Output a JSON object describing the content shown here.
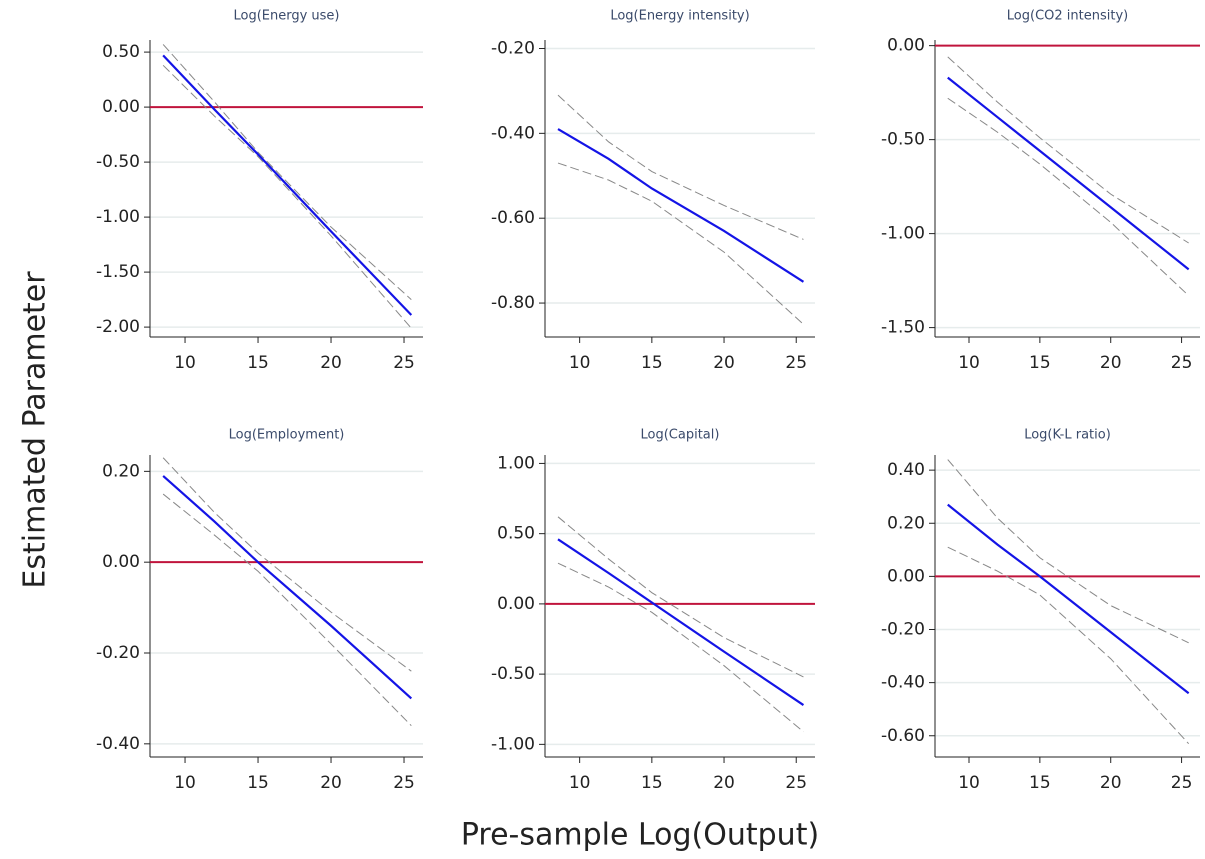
{
  "ylabel": "Estimated Parameter",
  "xlabel": "Pre-sample Log(Output)",
  "chart_data": [
    {
      "type": "line",
      "title": "Log(Energy use)",
      "x": [
        8.5,
        12,
        15,
        20,
        25.5
      ],
      "xlim": [
        7.6,
        26.3
      ],
      "xticks": [
        10,
        15,
        20,
        25
      ],
      "ylim": [
        -2.09,
        0.61
      ],
      "yticks": [
        {
          "value": 0.5,
          "label": "0.50"
        },
        {
          "value": 0,
          "label": "0.00"
        },
        {
          "value": -0.5,
          "label": "-0.50"
        },
        {
          "value": -1,
          "label": "-1.00"
        },
        {
          "value": -1.5,
          "label": "-1.50"
        },
        {
          "value": -2,
          "label": "-2.00"
        }
      ],
      "grid": true,
      "hline": 0,
      "hline_color": "#c0143c",
      "series": [
        {
          "color": "#1414e6",
          "values": [
            0.47,
            -0.02,
            -0.43,
            -1.13,
            -1.89
          ]
        },
        {
          "color": "#888888",
          "dash": true,
          "values": [
            0.57,
            0.05,
            -0.41,
            -1.09,
            -1.75
          ]
        },
        {
          "color": "#888888",
          "dash": true,
          "values": [
            0.38,
            -0.08,
            -0.45,
            -1.17,
            -2.01
          ]
        }
      ]
    },
    {
      "type": "line",
      "title": "Log(Energy intensity)",
      "x": [
        8.5,
        12,
        15,
        20,
        25.5
      ],
      "xlim": [
        7.6,
        26.3
      ],
      "xticks": [
        10,
        15,
        20,
        25
      ],
      "ylim": [
        -0.88,
        -0.18
      ],
      "yticks": [
        {
          "value": -0.2,
          "label": "-0.20"
        },
        {
          "value": -0.4,
          "label": "-0.40"
        },
        {
          "value": -0.6,
          "label": "-0.60"
        },
        {
          "value": -0.8,
          "label": "-0.80"
        }
      ],
      "grid": true,
      "series": [
        {
          "color": "#1414e6",
          "values": [
            -0.39,
            -0.46,
            -0.53,
            -0.63,
            -0.75
          ]
        },
        {
          "color": "#888888",
          "dash": true,
          "values": [
            -0.31,
            -0.42,
            -0.49,
            -0.57,
            -0.65
          ]
        },
        {
          "color": "#888888",
          "dash": true,
          "values": [
            -0.47,
            -0.51,
            -0.56,
            -0.68,
            -0.85
          ]
        }
      ]
    },
    {
      "type": "line",
      "title": "Log(CO2 intensity)",
      "x": [
        8.5,
        12,
        15,
        20,
        25.5
      ],
      "xlim": [
        7.6,
        26.3
      ],
      "xticks": [
        10,
        15,
        20,
        25
      ],
      "ylim": [
        -1.55,
        0.03
      ],
      "yticks": [
        {
          "value": 0,
          "label": "0.00"
        },
        {
          "value": -0.5,
          "label": "-0.50"
        },
        {
          "value": -1,
          "label": "-1.00"
        },
        {
          "value": -1.5,
          "label": "-1.50"
        }
      ],
      "grid": true,
      "hline": 0,
      "hline_color": "#c0143c",
      "series": [
        {
          "color": "#1414e6",
          "values": [
            -0.17,
            -0.38,
            -0.56,
            -0.86,
            -1.19
          ]
        },
        {
          "color": "#888888",
          "dash": true,
          "values": [
            -0.06,
            -0.3,
            -0.49,
            -0.79,
            -1.05
          ]
        },
        {
          "color": "#888888",
          "dash": true,
          "values": [
            -0.28,
            -0.46,
            -0.63,
            -0.94,
            -1.33
          ]
        }
      ]
    },
    {
      "type": "line",
      "title": "Log(Employment)",
      "x": [
        8.5,
        12,
        15,
        20,
        25.5
      ],
      "xlim": [
        7.6,
        26.3
      ],
      "xticks": [
        10,
        15,
        20,
        25
      ],
      "ylim": [
        -0.429,
        0.236
      ],
      "yticks": [
        {
          "value": 0.2,
          "label": "0.20"
        },
        {
          "value": 0,
          "label": "0.00"
        },
        {
          "value": -0.2,
          "label": "-0.20"
        },
        {
          "value": -0.4,
          "label": "-0.40"
        }
      ],
      "grid": true,
      "hline": 0,
      "hline_color": "#c0143c",
      "series": [
        {
          "color": "#1414e6",
          "values": [
            0.19,
            0.09,
            0.0,
            -0.14,
            -0.3
          ]
        },
        {
          "color": "#888888",
          "dash": true,
          "values": [
            0.23,
            0.11,
            0.02,
            -0.11,
            -0.24
          ]
        },
        {
          "color": "#888888",
          "dash": true,
          "values": [
            0.15,
            0.06,
            -0.02,
            -0.18,
            -0.36
          ]
        }
      ]
    },
    {
      "type": "line",
      "title": "Log(Capital)",
      "x": [
        8.5,
        12,
        15,
        20,
        25.5
      ],
      "xlim": [
        7.6,
        26.3
      ],
      "xticks": [
        10,
        15,
        20,
        25
      ],
      "ylim": [
        -1.09,
        1.06
      ],
      "yticks": [
        {
          "value": 1,
          "label": "1.00"
        },
        {
          "value": 0.5,
          "label": "0.50"
        },
        {
          "value": 0,
          "label": "0.00"
        },
        {
          "value": -0.5,
          "label": "-0.50"
        },
        {
          "value": -1,
          "label": "-1.00"
        }
      ],
      "grid": true,
      "hline": 0,
      "hline_color": "#c0143c",
      "series": [
        {
          "color": "#1414e6",
          "values": [
            0.46,
            0.22,
            0.01,
            -0.34,
            -0.72
          ]
        },
        {
          "color": "#888888",
          "dash": true,
          "values": [
            0.62,
            0.32,
            0.08,
            -0.24,
            -0.52
          ]
        },
        {
          "color": "#888888",
          "dash": true,
          "values": [
            0.29,
            0.12,
            -0.06,
            -0.44,
            -0.91
          ]
        }
      ]
    },
    {
      "type": "line",
      "title": "Log(K-L ratio)",
      "x": [
        8.5,
        12,
        15,
        20,
        25.5
      ],
      "xlim": [
        7.6,
        26.3
      ],
      "xticks": [
        10,
        15,
        20,
        25
      ],
      "ylim": [
        -0.68,
        0.457
      ],
      "yticks": [
        {
          "value": 0.4,
          "label": "0.40"
        },
        {
          "value": 0.2,
          "label": "0.20"
        },
        {
          "value": 0,
          "label": "0.00"
        },
        {
          "value": -0.2,
          "label": "-0.20"
        },
        {
          "value": -0.4,
          "label": "-0.40"
        },
        {
          "value": -0.6,
          "label": "-0.60"
        }
      ],
      "grid": true,
      "hline": 0,
      "hline_color": "#c0143c",
      "series": [
        {
          "color": "#1414e6",
          "values": [
            0.27,
            0.12,
            0.0,
            -0.21,
            -0.44
          ]
        },
        {
          "color": "#888888",
          "dash": true,
          "values": [
            0.44,
            0.22,
            0.07,
            -0.11,
            -0.25
          ]
        },
        {
          "color": "#888888",
          "dash": true,
          "values": [
            0.11,
            0.02,
            -0.07,
            -0.31,
            -0.63
          ]
        }
      ]
    }
  ]
}
